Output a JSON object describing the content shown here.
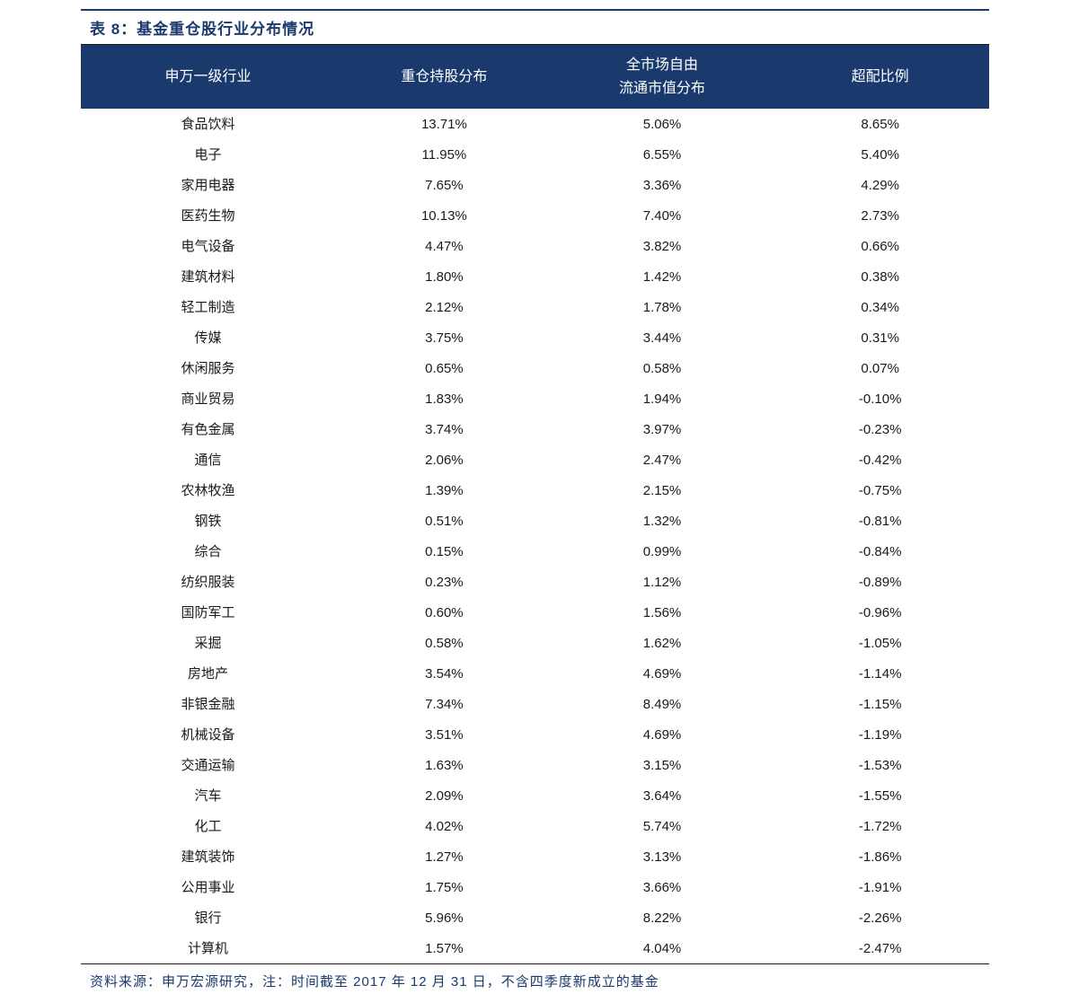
{
  "title": "表 8：基金重仓股行业分布情况",
  "table": {
    "header_bg_color": "#1a3a6e",
    "header_text_color": "#ffffff",
    "body_text_color": "#1a1a1a",
    "border_color": "#1a1a1a",
    "title_color": "#1a3a6e",
    "columns": [
      {
        "label_line1": "申万一级行业",
        "label_line2": ""
      },
      {
        "label_line1": "重仓持股分布",
        "label_line2": ""
      },
      {
        "label_line1": "全市场自由",
        "label_line2": "流通市值分布"
      },
      {
        "label_line1": "超配比例",
        "label_line2": ""
      }
    ],
    "rows": [
      [
        "食品饮料",
        "13.71%",
        "5.06%",
        "8.65%"
      ],
      [
        "电子",
        "11.95%",
        "6.55%",
        "5.40%"
      ],
      [
        "家用电器",
        "7.65%",
        "3.36%",
        "4.29%"
      ],
      [
        "医药生物",
        "10.13%",
        "7.40%",
        "2.73%"
      ],
      [
        "电气设备",
        "4.47%",
        "3.82%",
        "0.66%"
      ],
      [
        "建筑材料",
        "1.80%",
        "1.42%",
        "0.38%"
      ],
      [
        "轻工制造",
        "2.12%",
        "1.78%",
        "0.34%"
      ],
      [
        "传媒",
        "3.75%",
        "3.44%",
        "0.31%"
      ],
      [
        "休闲服务",
        "0.65%",
        "0.58%",
        "0.07%"
      ],
      [
        "商业贸易",
        "1.83%",
        "1.94%",
        "-0.10%"
      ],
      [
        "有色金属",
        "3.74%",
        "3.97%",
        "-0.23%"
      ],
      [
        "通信",
        "2.06%",
        "2.47%",
        "-0.42%"
      ],
      [
        "农林牧渔",
        "1.39%",
        "2.15%",
        "-0.75%"
      ],
      [
        "钢铁",
        "0.51%",
        "1.32%",
        "-0.81%"
      ],
      [
        "综合",
        "0.15%",
        "0.99%",
        "-0.84%"
      ],
      [
        "纺织服装",
        "0.23%",
        "1.12%",
        "-0.89%"
      ],
      [
        "国防军工",
        "0.60%",
        "1.56%",
        "-0.96%"
      ],
      [
        "采掘",
        "0.58%",
        "1.62%",
        "-1.05%"
      ],
      [
        "房地产",
        "3.54%",
        "4.69%",
        "-1.14%"
      ],
      [
        "非银金融",
        "7.34%",
        "8.49%",
        "-1.15%"
      ],
      [
        "机械设备",
        "3.51%",
        "4.69%",
        "-1.19%"
      ],
      [
        "交通运输",
        "1.63%",
        "3.15%",
        "-1.53%"
      ],
      [
        "汽车",
        "2.09%",
        "3.64%",
        "-1.55%"
      ],
      [
        "化工",
        "4.02%",
        "5.74%",
        "-1.72%"
      ],
      [
        "建筑装饰",
        "1.27%",
        "3.13%",
        "-1.86%"
      ],
      [
        "公用事业",
        "1.75%",
        "3.66%",
        "-1.91%"
      ],
      [
        "银行",
        "5.96%",
        "8.22%",
        "-2.26%"
      ],
      [
        "计算机",
        "1.57%",
        "4.04%",
        "-2.47%"
      ]
    ]
  },
  "source_note": "资料来源：申万宏源研究，注：时间截至 2017 年 12 月 31 日，不含四季度新成立的基金"
}
